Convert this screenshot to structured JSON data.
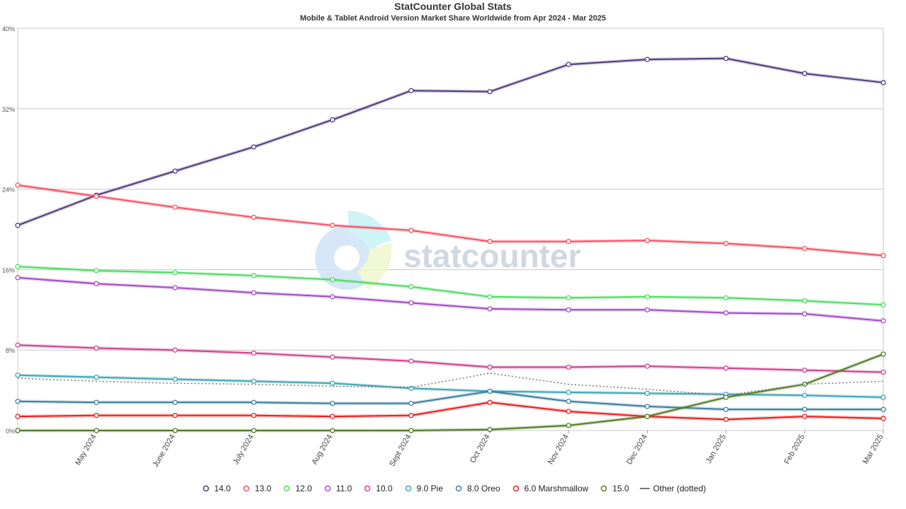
{
  "title": "StatCounter Global Stats",
  "subtitle": "Mobile & Tablet Android Version Market Share Worldwide from Apr 2024 - Mar 2025",
  "watermark": "statcounter",
  "chart_data": {
    "type": "line",
    "categories": [
      "Apr 2024",
      "May 2024",
      "June 2024",
      "July 2024",
      "Aug 2024",
      "Sept 2024",
      "Oct 2024",
      "Nov 2024",
      "Dec 2024",
      "Jan 2025",
      "Feb 2025",
      "Mar 2025"
    ],
    "x_tick_labels": [
      "May 2024",
      "June 2024",
      "July 2024",
      "Aug 2024",
      "Sept 2024",
      "Oct 2024",
      "Nov 2024",
      "Dec 2024",
      "Jan 2025",
      "Feb 2025",
      "Mar 2025"
    ],
    "y_tick_labels": [
      "0%",
      "8%",
      "16%",
      "24%",
      "32%",
      "40%"
    ],
    "ylim": [
      0,
      40
    ],
    "grid": true,
    "legend_position": "bottom",
    "series": [
      {
        "name": "14.0",
        "color": "#4e3a7d",
        "values": [
          20.4,
          23.4,
          25.8,
          28.2,
          30.9,
          33.8,
          33.7,
          36.4,
          36.9,
          37.0,
          35.5,
          34.6
        ]
      },
      {
        "name": "13.0",
        "color": "#ff4d5e",
        "values": [
          24.4,
          23.3,
          22.2,
          21.2,
          20.4,
          19.9,
          18.8,
          18.8,
          18.9,
          18.6,
          18.1,
          17.4
        ]
      },
      {
        "name": "12.0",
        "color": "#4cdd5f",
        "values": [
          16.3,
          15.9,
          15.7,
          15.4,
          15.0,
          14.3,
          13.3,
          13.2,
          13.3,
          13.2,
          12.9,
          12.5
        ]
      },
      {
        "name": "11.0",
        "color": "#a34bc9",
        "values": [
          15.2,
          14.6,
          14.2,
          13.7,
          13.3,
          12.7,
          12.1,
          12.0,
          12.0,
          11.7,
          11.6,
          10.9
        ]
      },
      {
        "name": "10.0",
        "color": "#d2418f",
        "values": [
          8.5,
          8.2,
          8.0,
          7.7,
          7.3,
          6.9,
          6.3,
          6.3,
          6.4,
          6.2,
          6.0,
          5.8
        ]
      },
      {
        "name": "9.0 Pie",
        "color": "#3da6b6",
        "values": [
          5.5,
          5.3,
          5.1,
          4.9,
          4.7,
          4.2,
          3.9,
          3.8,
          3.7,
          3.6,
          3.5,
          3.3
        ]
      },
      {
        "name": "8.0 Oreo",
        "color": "#3a7fa0",
        "values": [
          2.9,
          2.8,
          2.8,
          2.8,
          2.7,
          2.7,
          3.9,
          2.9,
          2.4,
          2.1,
          2.1,
          2.1
        ]
      },
      {
        "name": "6.0 Marshmallow",
        "color": "#ee1c1c",
        "values": [
          1.4,
          1.5,
          1.5,
          1.5,
          1.4,
          1.5,
          2.8,
          1.9,
          1.4,
          1.1,
          1.4,
          1.2
        ]
      },
      {
        "name": "15.0",
        "color": "#4f7d23",
        "values": [
          0.0,
          0.0,
          0.0,
          0.0,
          0.0,
          0.0,
          0.1,
          0.5,
          1.4,
          3.3,
          4.6,
          7.6
        ]
      },
      {
        "name": "Other (dotted)",
        "color": "#777777",
        "dotted": true,
        "values": [
          5.2,
          4.9,
          4.7,
          4.6,
          4.4,
          4.3,
          5.7,
          4.6,
          4.1,
          3.5,
          4.6,
          4.9
        ]
      }
    ]
  }
}
